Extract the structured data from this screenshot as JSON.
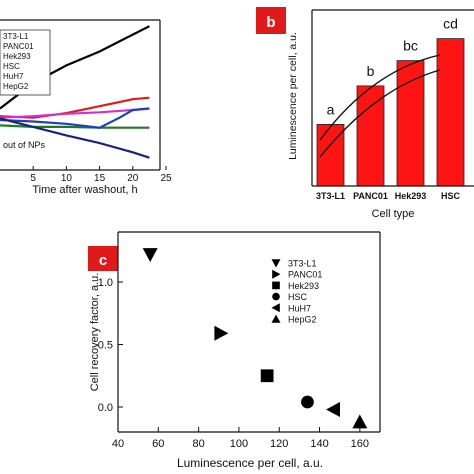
{
  "panels": {
    "a": {
      "xlabel": "Time after washout, h",
      "x_ticks": [
        "5",
        "10",
        "15",
        "20",
        "25"
      ],
      "legend": [
        "3T3-L1",
        "PANC01",
        "Hek293",
        "HSC",
        "HuH7",
        "HepG2"
      ],
      "annotation": "out of NPs"
    },
    "b": {
      "badge": "b",
      "ylabel": "Luminescence per cell, a.u.",
      "xlabel": "Cell type",
      "categories": [
        "3T3-L1",
        "PANC01",
        "Hek293",
        "HSC"
      ],
      "letters": [
        "a",
        "b",
        "bc",
        "cd"
      ]
    },
    "c": {
      "badge": "c",
      "ylabel": "Cell recovery factor, a.u.",
      "xlabel": "Luminescence per cell, a.u.",
      "x_ticks": [
        "40",
        "60",
        "80",
        "100",
        "120",
        "140",
        "160"
      ],
      "y_ticks": [
        "0.0",
        "0.5",
        "1.0"
      ],
      "legend": [
        "3T3-L1",
        "PANC01",
        "Hek293",
        "HSC",
        "HuH7",
        "HepG2"
      ]
    }
  },
  "colors": {
    "badge": "#e0191b",
    "bar": "#ff1414"
  },
  "chart_data": [
    {
      "type": "line",
      "xlabel": "Time after washout, h",
      "xlim": [
        0,
        25
      ],
      "series": [
        {
          "name": "3T3-L1",
          "color": "#000000",
          "x": [
            0,
            5,
            10,
            15,
            20,
            22.5
          ],
          "y": [
            1.1,
            1.43,
            1.66,
            1.84,
            2.06,
            2.17
          ]
        },
        {
          "name": "PANC01",
          "color": "#e41a1a",
          "x": [
            0,
            5,
            10,
            15,
            20,
            22.5
          ],
          "y": [
            1.0,
            0.98,
            1.04,
            1.13,
            1.22,
            1.24
          ]
        },
        {
          "name": "Hek293",
          "color": "#cc33cc",
          "x": [
            0,
            5,
            10,
            15,
            20,
            22.5
          ],
          "y": [
            0.98,
            1.0,
            1.03,
            1.05,
            1.08,
            1.1
          ]
        },
        {
          "name": "HSC",
          "color": "#1f7a1f",
          "x": [
            0,
            5,
            10,
            15,
            20,
            22.5
          ],
          "y": [
            0.88,
            0.86,
            0.86,
            0.85,
            0.85,
            0.85
          ]
        },
        {
          "name": "HuH7",
          "color": "#1f3fbf",
          "x": [
            0,
            5,
            10,
            15,
            18,
            20,
            22.5
          ],
          "y": [
            0.95,
            0.93,
            0.9,
            0.85,
            0.98,
            1.08,
            1.1
          ]
        },
        {
          "name": "HepG2",
          "color": "#1a237e",
          "x": [
            0,
            5,
            10,
            15,
            20,
            22.5
          ],
          "y": [
            0.97,
            0.86,
            0.75,
            0.65,
            0.53,
            0.46
          ]
        }
      ]
    },
    {
      "type": "bar",
      "categories": [
        "3T3-L1",
        "PANC01",
        "Hek293",
        "HSC"
      ],
      "values": [
        56,
        91,
        114,
        134
      ],
      "labels": [
        "a",
        "b",
        "bc",
        "cd"
      ],
      "ylabel": "Luminescence per cell, a.u.",
      "xlabel": "Cell type",
      "ylim": [
        0,
        160
      ]
    },
    {
      "type": "scatter",
      "xlabel": "Luminescence per cell, a.u.",
      "ylabel": "Cell recovery factor, a.u.",
      "xlim": [
        40,
        170
      ],
      "ylim": [
        -0.2,
        1.4
      ],
      "legend_position": "top-right",
      "points": [
        {
          "name": "3T3-L1",
          "marker": "triangle-down",
          "x": 56,
          "y": 1.22
        },
        {
          "name": "PANC01",
          "marker": "triangle-right",
          "x": 91,
          "y": 0.59
        },
        {
          "name": "Hek293",
          "marker": "square",
          "x": 114,
          "y": 0.25
        },
        {
          "name": "HSC",
          "marker": "circle",
          "x": 134,
          "y": 0.04
        },
        {
          "name": "HuH7",
          "marker": "triangle-left",
          "x": 147,
          "y": -0.02
        },
        {
          "name": "HepG2",
          "marker": "triangle-up",
          "x": 160,
          "y": -0.12
        }
      ]
    }
  ]
}
